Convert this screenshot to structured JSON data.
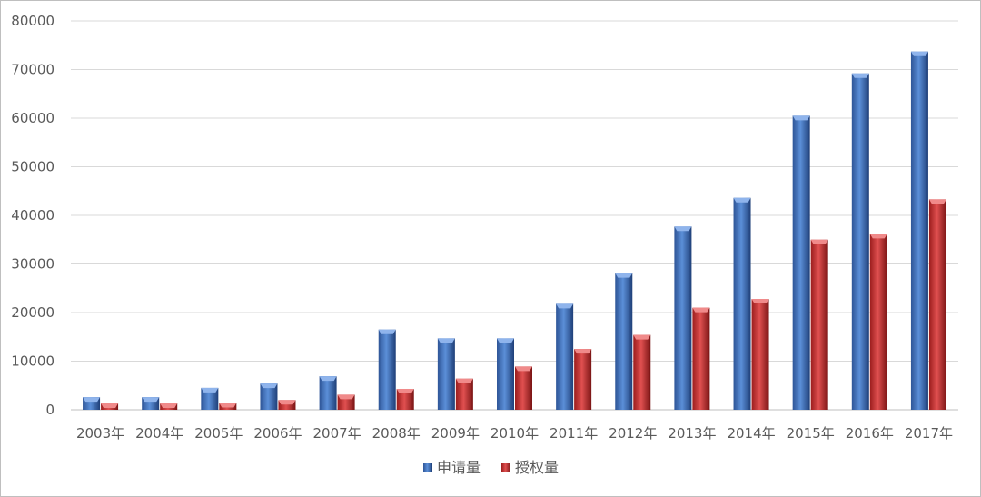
{
  "chart_data": {
    "type": "bar",
    "categories": [
      "2003年",
      "2004年",
      "2005年",
      "2006年",
      "2007年",
      "2008年",
      "2009年",
      "2010年",
      "2011年",
      "2012年",
      "2013年",
      "2014年",
      "2015年",
      "2016年",
      "2017年"
    ],
    "series": [
      {
        "name": "申请量",
        "color": "#4472c4",
        "values": [
          2600,
          2600,
          4500,
          5400,
          6900,
          16500,
          14700,
          14700,
          21800,
          28100,
          37700,
          43600,
          60500,
          69200,
          73700
        ]
      },
      {
        "name": "授权量",
        "color": "#c0392b",
        "values": [
          1300,
          1300,
          1400,
          2000,
          3100,
          4300,
          6400,
          8900,
          12500,
          15400,
          21000,
          22800,
          35000,
          36200,
          43300
        ]
      }
    ],
    "ylim": [
      0,
      80000
    ],
    "yticks": [
      "0",
      "10000",
      "20000",
      "30000",
      "40000",
      "50000",
      "60000",
      "70000",
      "80000"
    ],
    "grid": true,
    "legend": "bottom",
    "title": "",
    "xlabel": "",
    "ylabel": ""
  }
}
